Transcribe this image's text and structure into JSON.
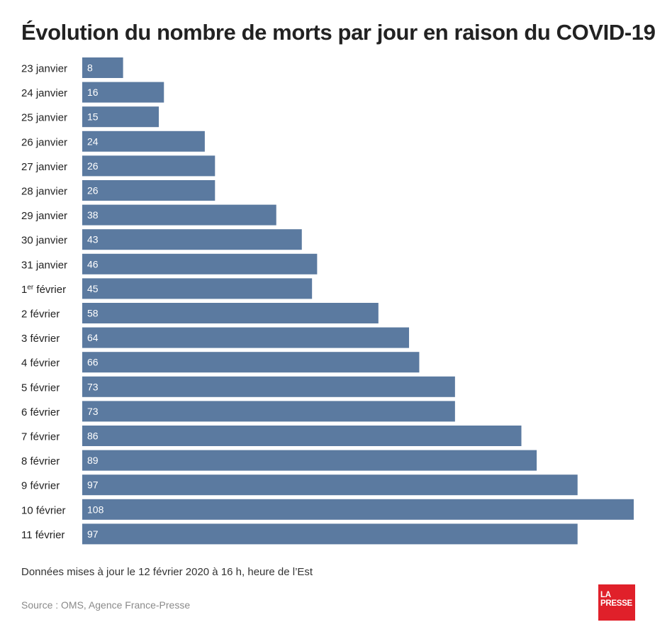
{
  "title": "Évolution du nombre de morts par jour en raison du COVID-19",
  "note": "Données mises à jour le 12 février 2020 à 16 h, heure de l’Est",
  "source": "Source : OMS, Agence France-Presse",
  "logo": {
    "line1": "LA",
    "line2": "PRESSE"
  },
  "colors": {
    "bar": "#5b7aa0",
    "logo_bg": "#e0202a"
  },
  "chart_data": {
    "type": "bar",
    "orientation": "horizontal",
    "title": "Évolution du nombre de morts par jour en raison du COVID-19",
    "categories": [
      "23 janvier",
      "24 janvier",
      "25 janvier",
      "26 janvier",
      "27 janvier",
      "28 janvier",
      "29 janvier",
      "30 janvier",
      "31 janvier",
      "1er février",
      "2 février",
      "3 février",
      "4 février",
      "5 février",
      "6 février",
      "7 février",
      "8 février",
      "9 février",
      "10 février",
      "11 février"
    ],
    "values": [
      8,
      16,
      15,
      24,
      26,
      26,
      38,
      43,
      46,
      45,
      58,
      64,
      66,
      73,
      73,
      86,
      89,
      97,
      108,
      97
    ],
    "data_labels": true,
    "xlim": [
      0,
      108
    ],
    "grid": false,
    "legend": "none"
  }
}
